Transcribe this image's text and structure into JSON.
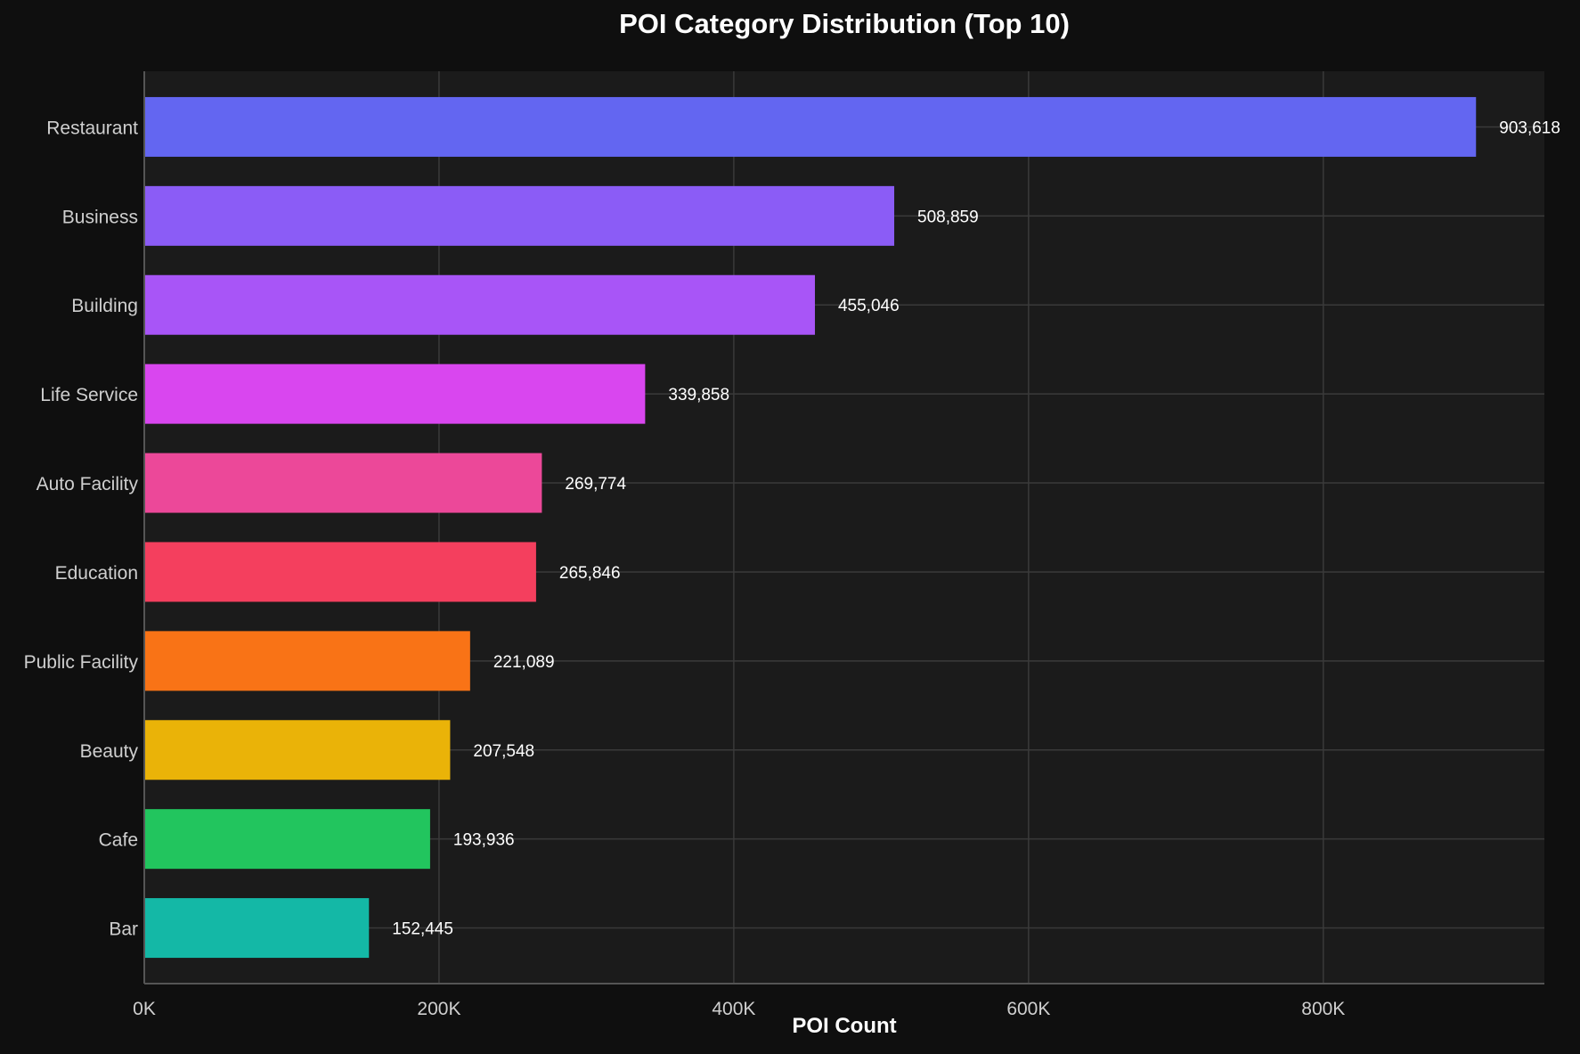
{
  "chart_data": {
    "type": "bar",
    "orientation": "horizontal",
    "title": "POI Category Distribution (Top 10)",
    "xlabel": "POI Count",
    "ylabel": "",
    "xlim": [
      0,
      950000
    ],
    "x_ticks": [
      0,
      200000,
      400000,
      600000,
      800000
    ],
    "x_tick_labels": [
      "0K",
      "200K",
      "400K",
      "600K",
      "800K"
    ],
    "grid": true,
    "categories": [
      "Restaurant",
      "Business",
      "Building",
      "Life Service",
      "Auto Facility",
      "Education",
      "Public Facility",
      "Beauty",
      "Cafe",
      "Bar"
    ],
    "values": [
      903618,
      508859,
      455046,
      339858,
      269774,
      265846,
      221089,
      207548,
      193936,
      152445
    ],
    "value_labels": [
      "903,618",
      "508,859",
      "455,046",
      "339,858",
      "269,774",
      "265,846",
      "221,089",
      "207,548",
      "193,936",
      "152,445"
    ],
    "colors": [
      "#6366f1",
      "#8b5cf6",
      "#a855f7",
      "#d946ef",
      "#ec4899",
      "#f43f5e",
      "#f97316",
      "#eab308",
      "#22c55e",
      "#14b8a6"
    ]
  },
  "theme": {
    "page_background": "#0f0f0f",
    "plot_background": "#1b1b1b",
    "grid_color": "#3a3a3a",
    "axis_color": "#555555",
    "text_color": "#ffffff",
    "tick_color": "#cfcfcf"
  }
}
